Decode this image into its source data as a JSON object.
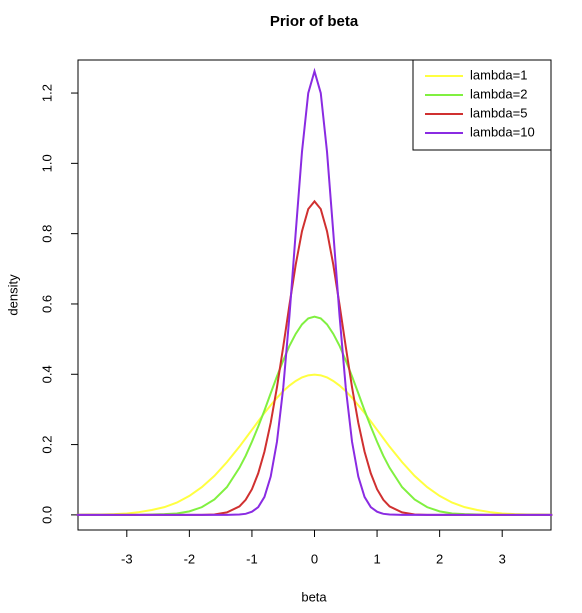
{
  "chart_data": {
    "type": "line",
    "title": "Prior of beta",
    "x_label": "beta",
    "y_label": "density",
    "x": [
      -3.8,
      -3.6,
      -3.4,
      -3.2,
      -3,
      -2.8,
      -2.6,
      -2.4,
      -2.2,
      -2,
      -1.8,
      -1.6,
      -1.4,
      -1.2,
      -1.1,
      -1,
      -0.9,
      -0.8,
      -0.7,
      -0.6,
      -0.5,
      -0.4,
      -0.3,
      -0.2,
      -0.1,
      0,
      0.1,
      0.2,
      0.3,
      0.4,
      0.5,
      0.6,
      0.7,
      0.8,
      0.9,
      1,
      1.1,
      1.2,
      1.4,
      1.6,
      1.8,
      2,
      2.2,
      2.4,
      2.6,
      2.8,
      3,
      3.2,
      3.4,
      3.6,
      3.8
    ],
    "series": [
      {
        "name": "lambda=1",
        "color": "#ffff40",
        "values": [
          0,
          0.001,
          0.001,
          0.002,
          0.004,
          0.008,
          0.014,
          0.022,
          0.035,
          0.054,
          0.079,
          0.111,
          0.15,
          0.194,
          0.218,
          0.242,
          0.266,
          0.29,
          0.312,
          0.333,
          0.352,
          0.368,
          0.381,
          0.391,
          0.397,
          0.399,
          0.397,
          0.391,
          0.381,
          0.368,
          0.352,
          0.333,
          0.312,
          0.29,
          0.266,
          0.242,
          0.218,
          0.194,
          0.15,
          0.111,
          0.079,
          0.054,
          0.035,
          0.022,
          0.014,
          0.008,
          0.004,
          0.002,
          0.001,
          0.001,
          0
        ]
      },
      {
        "name": "lambda=2",
        "color": "#80f040",
        "values": [
          0,
          0,
          0,
          0,
          0,
          0,
          0.001,
          0.002,
          0.004,
          0.01,
          0.022,
          0.044,
          0.079,
          0.134,
          0.168,
          0.208,
          0.251,
          0.297,
          0.346,
          0.394,
          0.439,
          0.481,
          0.515,
          0.542,
          0.559,
          0.564,
          0.559,
          0.542,
          0.515,
          0.481,
          0.439,
          0.394,
          0.346,
          0.297,
          0.251,
          0.208,
          0.168,
          0.134,
          0.079,
          0.044,
          0.022,
          0.01,
          0.004,
          0.002,
          0.001,
          0,
          0,
          0,
          0,
          0,
          0
        ]
      },
      {
        "name": "lambda=5",
        "color": "#d03030",
        "values": [
          0,
          0,
          0,
          0,
          0,
          0,
          0,
          0,
          0,
          0,
          0,
          0.001,
          0.007,
          0.024,
          0.043,
          0.073,
          0.118,
          0.18,
          0.262,
          0.363,
          0.478,
          0.598,
          0.712,
          0.807,
          0.87,
          0.892,
          0.87,
          0.807,
          0.712,
          0.598,
          0.478,
          0.363,
          0.262,
          0.18,
          0.118,
          0.073,
          0.043,
          0.024,
          0.007,
          0.001,
          0,
          0,
          0,
          0,
          0,
          0,
          0,
          0,
          0,
          0,
          0
        ]
      },
      {
        "name": "lambda=10",
        "color": "#8a2be2",
        "values": [
          0,
          0,
          0,
          0,
          0,
          0,
          0,
          0,
          0,
          0,
          0,
          0,
          0,
          0.001,
          0.003,
          0.009,
          0.022,
          0.051,
          0.109,
          0.208,
          0.361,
          0.567,
          0.804,
          1.033,
          1.2,
          1.262,
          1.2,
          1.033,
          0.804,
          0.567,
          0.361,
          0.208,
          0.109,
          0.051,
          0.022,
          0.009,
          0.003,
          0.001,
          0,
          0,
          0,
          0,
          0,
          0,
          0,
          0,
          0,
          0,
          0,
          0,
          0
        ]
      }
    ],
    "xlim": [
      -3.78,
      3.78
    ],
    "ylim": [
      -0.043,
      1.294
    ],
    "xticks": [
      -3,
      -2,
      -1,
      0,
      1,
      2,
      3
    ],
    "yticks": [
      {
        "value": 0,
        "label": "0.0"
      },
      0.2,
      0.4,
      0.6,
      0.8,
      {
        "value": 1,
        "label": "1.0"
      },
      1.2
    ],
    "legend": "top-right",
    "grid": false
  }
}
